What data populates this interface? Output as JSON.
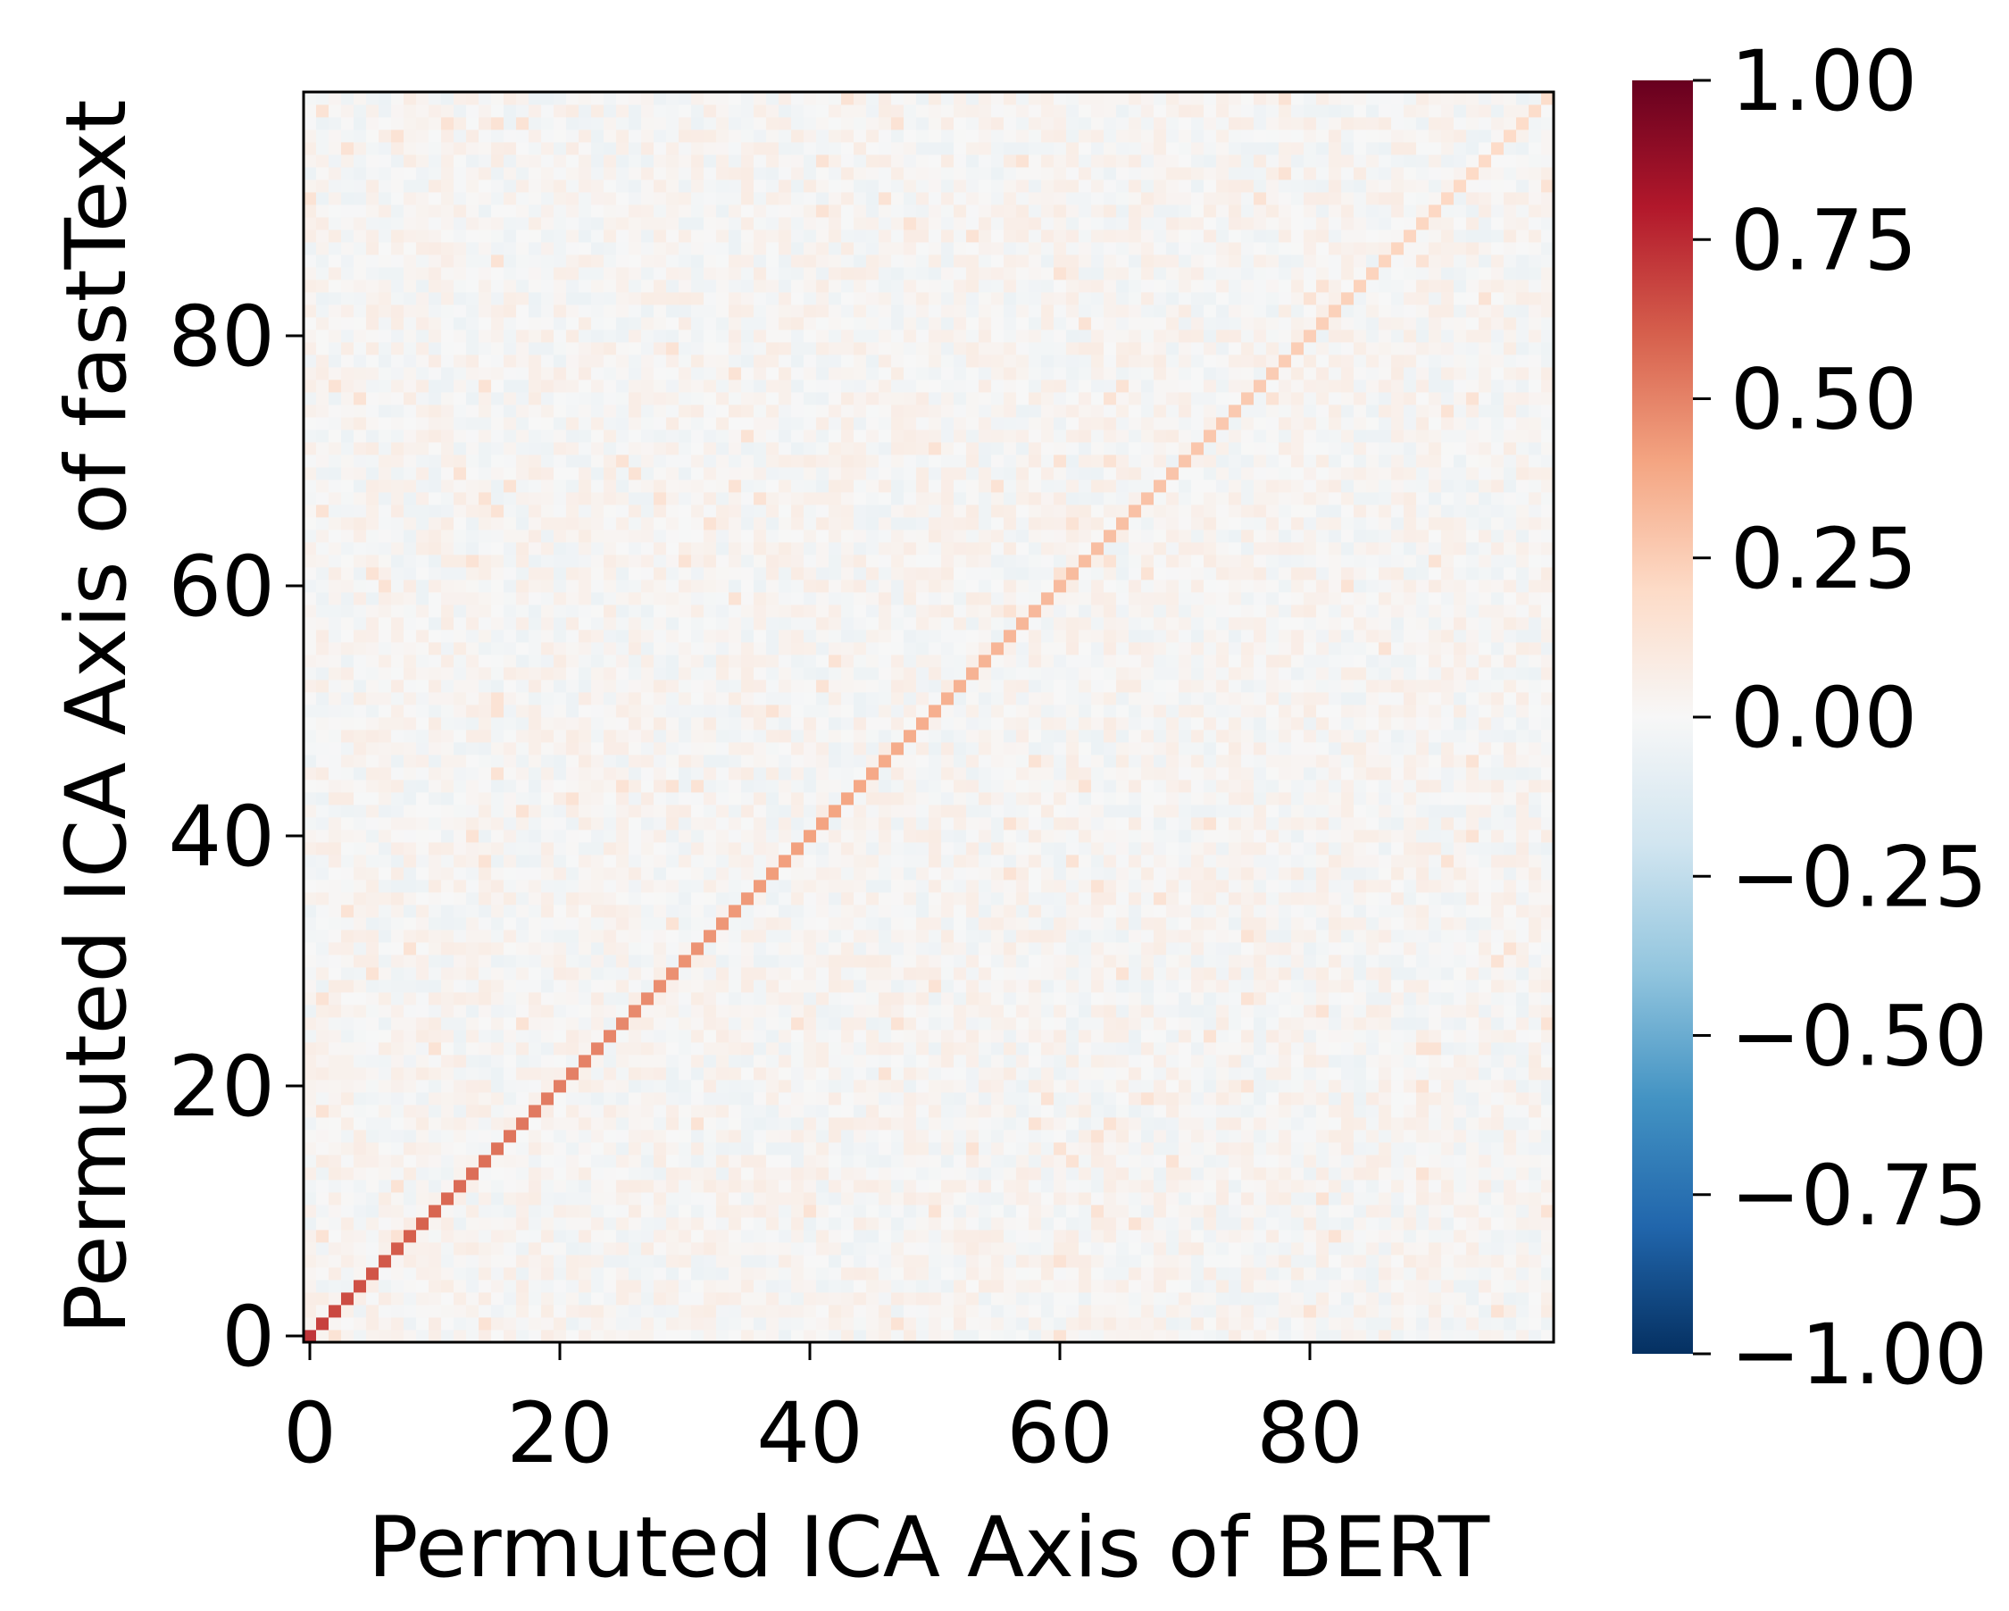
{
  "chart_data": {
    "type": "heatmap",
    "title": "",
    "xlabel": "Permuted ICA Axis of BERT",
    "ylabel": "Permuted ICA Axis of fastText",
    "n": 100,
    "xlim": [
      -0.5,
      99.5
    ],
    "ylim": [
      -0.5,
      99.5
    ],
    "x_ticks": [
      0,
      20,
      40,
      60,
      80
    ],
    "y_ticks": [
      0,
      20,
      40,
      60,
      80
    ],
    "x_tick_labels": [
      "0",
      "20",
      "40",
      "60",
      "80"
    ],
    "y_tick_labels": [
      "0",
      "20",
      "40",
      "60",
      "80"
    ],
    "diagonal_start": 0.72,
    "diagonal_end": 0.18,
    "off_diagonal_range": [
      -0.06,
      0.08
    ],
    "colormap": "RdBu_r",
    "colorbar": {
      "range": [
        -1.0,
        1.0
      ],
      "ticks": [
        1.0,
        0.75,
        0.5,
        0.25,
        0.0,
        -0.25,
        -0.5,
        -0.75,
        -1.0
      ],
      "tick_labels": [
        "1.00",
        "0.75",
        "0.50",
        "0.25",
        "0.00",
        "−0.25",
        "−0.50",
        "−0.75",
        "−1.00"
      ],
      "stops": [
        "#053061",
        "#2166ac",
        "#4393c3",
        "#92c5de",
        "#d1e5f0",
        "#f7f7f7",
        "#fddbc7",
        "#f4a582",
        "#d6604d",
        "#b2182b",
        "#67001f"
      ]
    }
  }
}
